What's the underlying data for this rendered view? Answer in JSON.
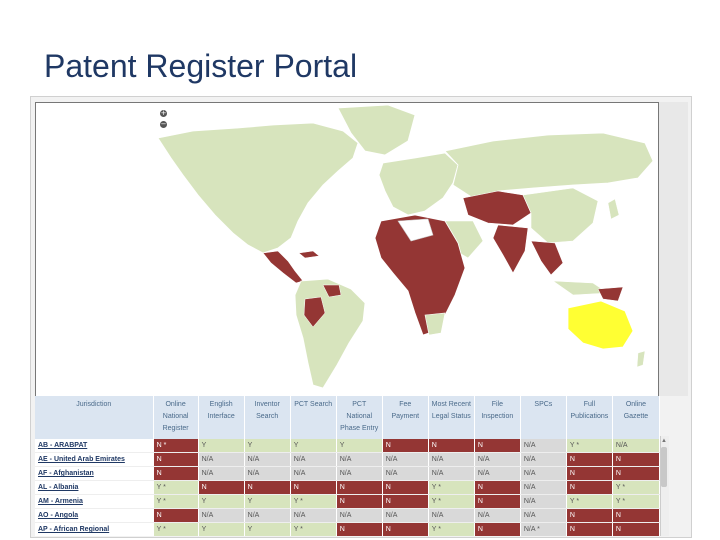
{
  "title": "Patent Register Portal",
  "map": {
    "zoom_in": "+",
    "zoom_out": "−",
    "colors": {
      "no": "#943634",
      "yes": "#d7e4bd",
      "selected": "#ffff33",
      "unknown": "#ffffff",
      "ocean": "#ffffff"
    }
  },
  "table": {
    "headers": [
      "Jurisdiction",
      "Online National Register",
      "English Interface",
      "Inventor Search",
      "PCT Search",
      "PCT National Phase Entry",
      "Fee Payment",
      "Most Recent Legal Status",
      "File Inspection",
      "SPCs",
      "Full Publications",
      "Online Gazette"
    ],
    "rows": [
      {
        "name": "AB - ARABPAT",
        "cells": [
          [
            "N *",
            "r"
          ],
          [
            "Y",
            "g"
          ],
          [
            "Y",
            "g"
          ],
          [
            "Y",
            "g"
          ],
          [
            "Y",
            "g"
          ],
          [
            "N",
            "r"
          ],
          [
            "N",
            "r"
          ],
          [
            "N",
            "r"
          ],
          [
            "N/A",
            "d"
          ],
          [
            "Y *",
            "g"
          ],
          [
            "N/A",
            "g"
          ]
        ]
      },
      {
        "name": "AE - United Arab Emirates",
        "cells": [
          [
            "N",
            "r"
          ],
          [
            "N/A",
            "d"
          ],
          [
            "N/A",
            "d"
          ],
          [
            "N/A",
            "d"
          ],
          [
            "N/A",
            "d"
          ],
          [
            "N/A",
            "d"
          ],
          [
            "N/A",
            "d"
          ],
          [
            "N/A",
            "d"
          ],
          [
            "N/A",
            "d"
          ],
          [
            "N",
            "r"
          ],
          [
            "N",
            "r"
          ]
        ]
      },
      {
        "name": "AF - Afghanistan",
        "cells": [
          [
            "N",
            "r"
          ],
          [
            "N/A",
            "d"
          ],
          [
            "N/A",
            "d"
          ],
          [
            "N/A",
            "d"
          ],
          [
            "N/A",
            "d"
          ],
          [
            "N/A",
            "d"
          ],
          [
            "N/A",
            "d"
          ],
          [
            "N/A",
            "d"
          ],
          [
            "N/A",
            "d"
          ],
          [
            "N",
            "r"
          ],
          [
            "N",
            "r"
          ]
        ]
      },
      {
        "name": "AL - Albania",
        "cells": [
          [
            "Y *",
            "g"
          ],
          [
            "N",
            "r"
          ],
          [
            "N",
            "r"
          ],
          [
            "N",
            "r"
          ],
          [
            "N",
            "r"
          ],
          [
            "N",
            "r"
          ],
          [
            "Y *",
            "g"
          ],
          [
            "N",
            "r"
          ],
          [
            "N/A",
            "d"
          ],
          [
            "N",
            "r"
          ],
          [
            "Y *",
            "g"
          ]
        ]
      },
      {
        "name": "AM - Armenia",
        "cells": [
          [
            "Y *",
            "g"
          ],
          [
            "Y",
            "g"
          ],
          [
            "Y",
            "g"
          ],
          [
            "Y *",
            "g"
          ],
          [
            "N",
            "r"
          ],
          [
            "N",
            "r"
          ],
          [
            "Y *",
            "g"
          ],
          [
            "N",
            "r"
          ],
          [
            "N/A",
            "d"
          ],
          [
            "Y *",
            "g"
          ],
          [
            "Y *",
            "g"
          ]
        ]
      },
      {
        "name": "AO - Angola",
        "cells": [
          [
            "N",
            "r"
          ],
          [
            "N/A",
            "d"
          ],
          [
            "N/A",
            "d"
          ],
          [
            "N/A",
            "d"
          ],
          [
            "N/A",
            "d"
          ],
          [
            "N/A",
            "d"
          ],
          [
            "N/A",
            "d"
          ],
          [
            "N/A",
            "d"
          ],
          [
            "N/A",
            "d"
          ],
          [
            "N",
            "r"
          ],
          [
            "N",
            "r"
          ]
        ]
      },
      {
        "name": "AP - African Regional",
        "cells": [
          [
            "Y *",
            "g"
          ],
          [
            "Y",
            "g"
          ],
          [
            "Y",
            "g"
          ],
          [
            "Y *",
            "g"
          ],
          [
            "N",
            "r"
          ],
          [
            "N",
            "r"
          ],
          [
            "Y *",
            "g"
          ],
          [
            "N",
            "r"
          ],
          [
            "N/A *",
            "d"
          ],
          [
            "N",
            "r"
          ],
          [
            "N",
            "r"
          ]
        ]
      }
    ]
  }
}
